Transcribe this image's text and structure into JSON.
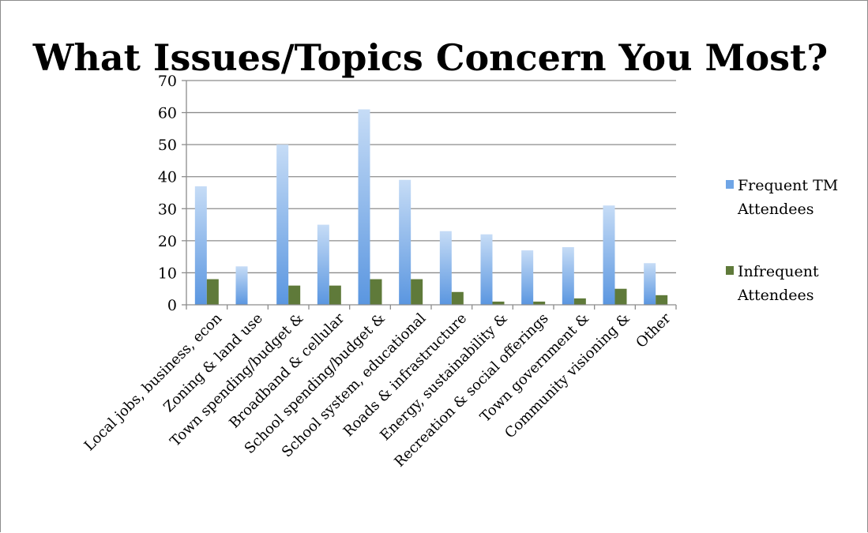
{
  "chart_data": {
    "type": "bar",
    "title": "What Issues/Topics Concern You Most?",
    "categories": [
      "Local jobs, business, econ",
      "Zoning & land use",
      "Town spending/budget &",
      "Broadband & cellular",
      "School spending/budget &",
      "School system, educational",
      "Roads & infrastructure",
      "Energy, sustainability &",
      "Recreation & social offerings",
      "Town government &",
      "Community visioning &",
      "Other"
    ],
    "series": [
      {
        "name": "Frequent TM Attendees",
        "legend_lines": [
          "Frequent TM",
          "Attendees"
        ],
        "color": "#8eb8ea",
        "values": [
          37,
          12,
          50,
          25,
          61,
          39,
          23,
          22,
          17,
          18,
          31,
          13
        ]
      },
      {
        "name": "Infrequent Attendees",
        "legend_lines": [
          "Infrequent",
          "Attendees"
        ],
        "color": "#5f7a3a",
        "values": [
          8,
          0,
          6,
          6,
          8,
          8,
          4,
          1,
          1,
          2,
          5,
          3
        ]
      }
    ],
    "xlabel": "",
    "ylabel": "",
    "ylim": [
      0,
      70
    ],
    "yticks": [
      0,
      10,
      20,
      30,
      40,
      50,
      60,
      70
    ],
    "grid": true,
    "legend_position": "right"
  }
}
